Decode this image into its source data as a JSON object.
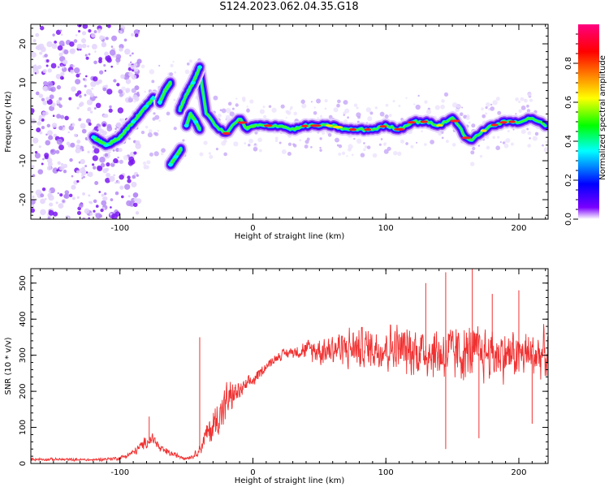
{
  "title": "S124.2023.062.04.35.G18",
  "chart_data": [
    {
      "type": "heatmap",
      "xlabel": "Height of straight line (km)",
      "ylabel": "Frequency (Hz)",
      "xlim": [
        -167,
        222
      ],
      "ylim": [
        -25,
        25
      ],
      "x_ticks": [
        -100,
        0,
        100,
        200
      ],
      "y_ticks": [
        -20,
        -10,
        0,
        10,
        20
      ],
      "colorbar": {
        "label": "Normalized spectral amplitude",
        "range": [
          0.0,
          1.0
        ],
        "ticks": [
          0.0,
          0.2,
          0.4,
          0.6,
          0.8
        ],
        "colors": [
          "#ffffff",
          "#6a00ff",
          "#0000ff",
          "#00ffff",
          "#00ff00",
          "#ffff00",
          "#ff8000",
          "#ff0000",
          "#ff0080"
        ]
      },
      "ridge": {
        "x": [
          -40,
          -35,
          -30,
          -25,
          -20,
          -15,
          -10,
          -5,
          0,
          10,
          20,
          30,
          40,
          50,
          60,
          70,
          80,
          90,
          100,
          110,
          120,
          130,
          140,
          150,
          155,
          160,
          165,
          170,
          180,
          190,
          200,
          210,
          220
        ],
        "y": [
          13,
          2,
          0,
          -2,
          -3,
          -1,
          1,
          -2,
          -1,
          -1,
          -1,
          -2,
          -1,
          -1,
          -1,
          -2,
          -2,
          -2,
          -1,
          -2,
          0,
          0,
          -1,
          1,
          -1,
          -4,
          -5,
          -3,
          -1,
          0,
          0,
          1,
          -1
        ]
      },
      "fragments": [
        {
          "x": [
            -120,
            -110,
            -100,
            -95,
            -90,
            -85,
            -80,
            -75
          ],
          "y": [
            -4,
            -6,
            -4,
            -2,
            0,
            2,
            4,
            6
          ]
        },
        {
          "x": [
            -70,
            -66,
            -62
          ],
          "y": [
            5,
            8,
            10
          ]
        },
        {
          "x": [
            -62,
            -58,
            -54
          ],
          "y": [
            -11,
            -9,
            -7
          ]
        },
        {
          "x": [
            -55,
            -50,
            -45,
            -40
          ],
          "y": [
            3,
            7,
            10,
            14
          ]
        },
        {
          "x": [
            -50,
            -47,
            -43,
            -40
          ],
          "y": [
            -1,
            2,
            0,
            -2
          ]
        }
      ],
      "noise_region": {
        "x": [
          -167,
          -100
        ],
        "y": [
          -25,
          25
        ]
      }
    },
    {
      "type": "line",
      "xlabel": "Height of straight line (km)",
      "ylabel": "SNR (10 * v/v)",
      "xlim": [
        -167,
        222
      ],
      "ylim": [
        0,
        540
      ],
      "x_ticks": [
        -100,
        0,
        100,
        200
      ],
      "y_ticks": [
        0,
        100,
        200,
        300,
        400,
        500
      ],
      "color": "#f03030",
      "envelope": {
        "x": [
          -167,
          -120,
          -100,
          -90,
          -80,
          -75,
          -70,
          -60,
          -50,
          -45,
          -40,
          -35,
          -30,
          -25,
          -20,
          -15,
          -10,
          -5,
          0,
          5,
          10,
          15,
          20,
          30,
          40,
          50,
          60,
          80,
          100,
          120,
          140,
          160,
          180,
          200,
          222
        ],
        "mean": [
          12,
          10,
          15,
          30,
          60,
          70,
          40,
          25,
          15,
          20,
          40,
          80,
          100,
          140,
          170,
          190,
          200,
          215,
          230,
          250,
          270,
          285,
          300,
          310,
          315,
          315,
          320,
          320,
          320,
          315,
          305,
          305,
          305,
          300,
          305
        ],
        "spread": [
          6,
          6,
          8,
          15,
          25,
          30,
          20,
          12,
          8,
          10,
          25,
          50,
          80,
          90,
          80,
          60,
          40,
          30,
          30,
          25,
          20,
          20,
          20,
          25,
          40,
          60,
          75,
          90,
          100,
          110,
          120,
          120,
          110,
          100,
          100
        ]
      },
      "peaks": [
        {
          "x": -78,
          "y": 130
        },
        {
          "x": -40,
          "y": 350
        },
        {
          "x": 130,
          "y": 500
        },
        {
          "x": 145,
          "y": 530
        },
        {
          "x": 165,
          "y": 540
        },
        {
          "x": 180,
          "y": 470
        },
        {
          "x": 200,
          "y": 480
        },
        {
          "x": 145,
          "y": 40
        },
        {
          "x": 170,
          "y": 70
        },
        {
          "x": 210,
          "y": 110
        }
      ]
    }
  ]
}
